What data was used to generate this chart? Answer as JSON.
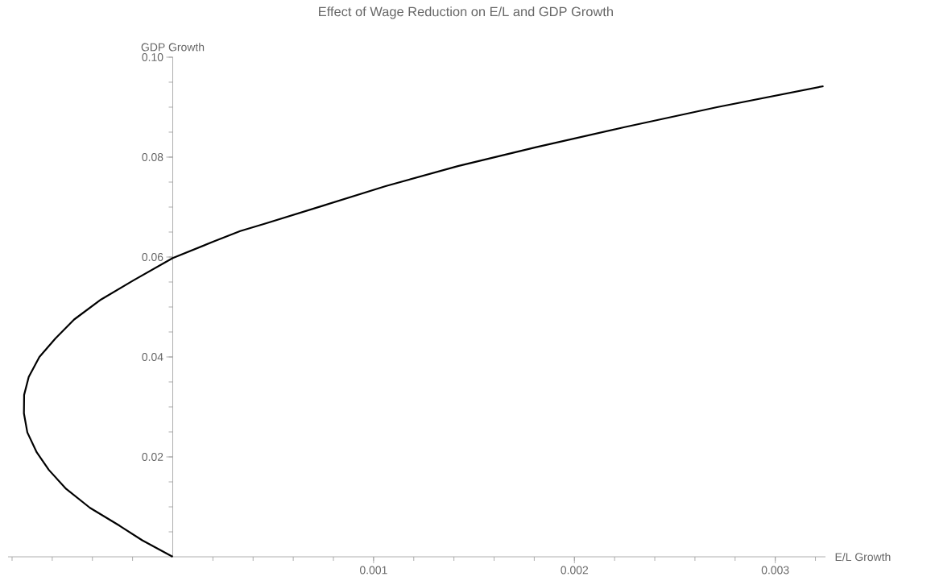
{
  "chart_data": {
    "type": "line",
    "title": "Effect of Wage Reduction on E/L and GDP Growth",
    "xlabel": "E/L Growth",
    "ylabel": "GDP Growth",
    "xlim": [
      -0.00082,
      0.00325
    ],
    "ylim": [
      0,
      0.1
    ],
    "xticks": [
      0.001,
      0.002,
      0.003
    ],
    "yticks": [
      0.02,
      0.04,
      0.06,
      0.08,
      {
        "value": 0.1,
        "label": "0.10"
      }
    ],
    "grid": false,
    "marker": "none",
    "line_style": "solid",
    "series": [
      {
        "color": "#000000",
        "x": [
          0,
          -0.000152,
          -0.000264,
          -0.000412,
          -0.000531,
          -0.000617,
          -0.000677,
          -0.000724,
          -0.000741,
          -0.00074,
          -0.000717,
          -0.000664,
          -0.000584,
          -0.000491,
          -0.000357,
          -0.000197,
          0,
          0.000203,
          0.000336,
          0.00046,
          0.00075,
          0.00106,
          0.00142,
          0.00181,
          0.00225,
          0.00271,
          0.00324
        ],
        "values": [
          0,
          0.0033,
          0.0062,
          0.0098,
          0.0136,
          0.0174,
          0.0209,
          0.0249,
          0.0287,
          0.0324,
          0.036,
          0.04,
          0.0437,
          0.0475,
          0.0515,
          0.0553,
          0.0598,
          0.0631,
          0.0652,
          0.0667,
          0.0703,
          0.0742,
          0.0782,
          0.082,
          0.086,
          0.09,
          0.0942
        ]
      }
    ]
  }
}
